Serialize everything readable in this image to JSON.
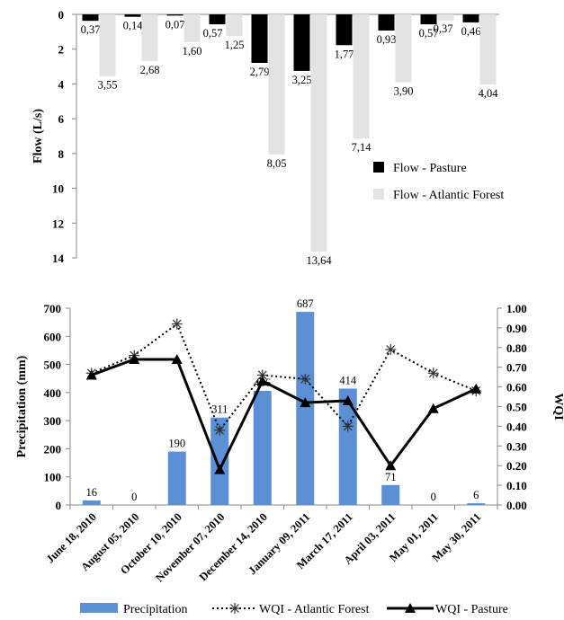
{
  "chart_data": [
    {
      "type": "bar",
      "ylabel": "Flow (L/s)",
      "ylim": [
        0,
        14
      ],
      "yticks": [
        0,
        2,
        4,
        6,
        8,
        10,
        12,
        14
      ],
      "y_inverted": true,
      "legend_position": "right",
      "series": [
        {
          "name": "Flow - Pasture",
          "color": "#000000",
          "values": [
            0.37,
            0.14,
            0.07,
            0.57,
            2.79,
            3.25,
            1.77,
            0.93,
            0.57,
            0.46
          ],
          "labels": [
            "0,37",
            "0,14",
            "0,07",
            "0,57",
            "2,79",
            "3,25",
            "1,77",
            "0,93",
            "0,57",
            "0,46"
          ]
        },
        {
          "name": "Flow - Atlantic Forest",
          "color": "#e3e3e3",
          "values": [
            3.55,
            2.68,
            1.6,
            1.25,
            8.05,
            13.64,
            7.14,
            3.9,
            0.37,
            4.04
          ],
          "labels": [
            "3,55",
            "2,68",
            "1,60",
            "1,25",
            "8,05",
            "13,64",
            "7,14",
            "3,90",
            "0,37",
            "4,04"
          ]
        }
      ]
    },
    {
      "type": "bar+line",
      "categories": [
        "June 18, 2010",
        "August 05, 2010",
        "October 10, 2010",
        "November 07, 2010",
        "December 14, 2010",
        "January 09, 2011",
        "March 17, 2011",
        "April 03, 2011",
        "May 01, 2011",
        "May 30, 2011"
      ],
      "ylabel": "Precipitation (mm)",
      "ylim": [
        0,
        700
      ],
      "yticks": [
        0,
        100,
        200,
        300,
        400,
        500,
        600,
        700
      ],
      "y2label": "WQI",
      "y2lim": [
        0,
        1
      ],
      "y2ticks": [
        "0.00",
        "0.10",
        "0.20",
        "0.30",
        "0.40",
        "0.50",
        "0.60",
        "0.70",
        "0.80",
        "0.90",
        "1.00"
      ],
      "legend_position": "bottom",
      "bars": {
        "name": "Precipitation",
        "color": "#5b8fd6",
        "values": [
          16,
          0,
          190,
          311,
          406,
          687,
          414,
          71,
          0,
          6
        ],
        "labels": [
          "16",
          "0",
          "190",
          "311",
          "406",
          "687",
          "414",
          "71",
          "0",
          "6"
        ]
      },
      "lines": [
        {
          "name": "WQI - Atlantic Forest",
          "style": "dotted",
          "marker": "asterisk",
          "values": [
            0.67,
            0.76,
            0.92,
            0.38,
            0.66,
            0.64,
            0.4,
            0.79,
            0.67,
            0.58
          ]
        },
        {
          "name": "WQI - Pasture",
          "style": "solid",
          "marker": "triangle",
          "values": [
            0.66,
            0.74,
            0.74,
            0.18,
            0.63,
            0.52,
            0.53,
            0.2,
            0.49,
            0.59
          ]
        }
      ]
    }
  ]
}
